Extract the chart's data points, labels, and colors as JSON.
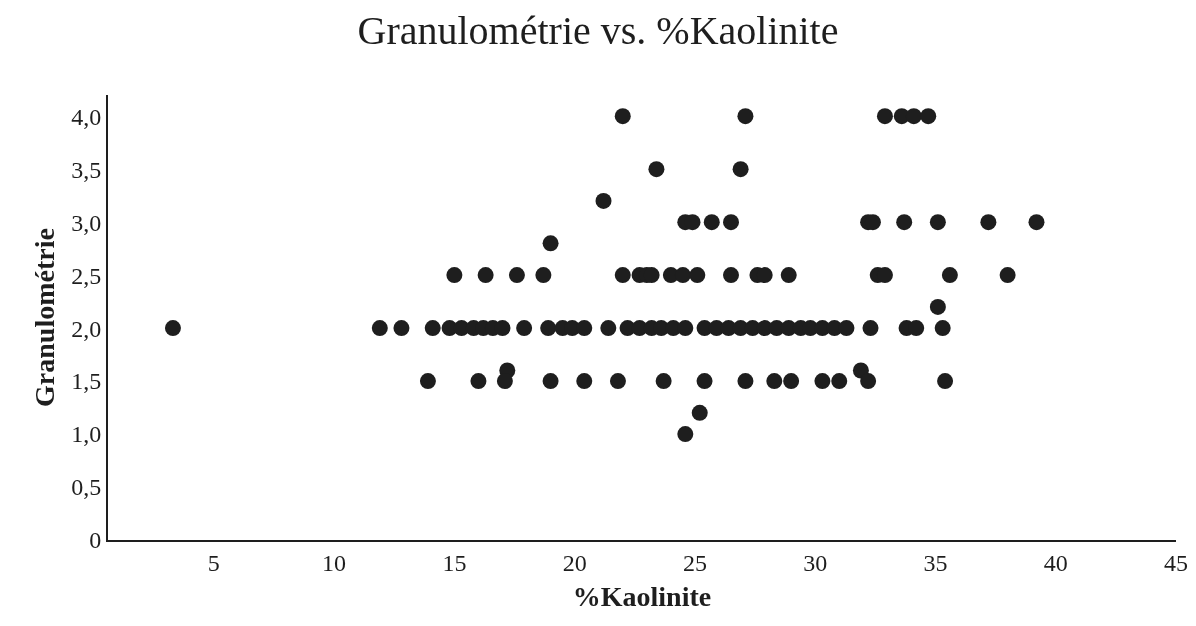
{
  "chart_data": {
    "type": "scatter",
    "title": "Granulométrie vs. %Kaolinite",
    "xlabel": "%Kaolinite",
    "ylabel": "Granulométrie",
    "marker": "circle",
    "xlim": [
      0.6,
      45
    ],
    "xticks": [
      5,
      10,
      15,
      20,
      25,
      30,
      35,
      40,
      45
    ],
    "ylim": [
      0,
      4.2
    ],
    "yticks": [
      0,
      {
        "value": 0.5,
        "label": "0,5"
      },
      {
        "value": 1,
        "label": "1,0"
      },
      {
        "value": 1.5,
        "label": "1,5"
      },
      {
        "value": 2,
        "label": "2,0"
      },
      {
        "value": 2.5,
        "label": "2,5"
      },
      {
        "value": 3,
        "label": "3,0"
      },
      {
        "value": 3.5,
        "label": "3,5"
      },
      {
        "value": 4,
        "label": "4,0"
      }
    ],
    "series": [
      {
        "color": "#1e1e1e",
        "x": [
          22.0,
          27.1,
          32.9,
          33.6,
          34.1,
          34.7,
          23.4,
          26.9,
          21.2,
          24.6,
          24.9,
          25.7,
          26.5,
          32.2,
          32.4,
          33.7,
          35.1,
          37.2,
          39.2,
          19.0,
          15.0,
          16.3,
          17.6,
          18.7,
          22.0,
          22.7,
          23.0,
          23.2,
          24.0,
          24.5,
          25.1,
          26.5,
          27.6,
          27.9,
          28.9,
          32.6,
          32.9,
          35.6,
          38.0,
          35.1,
          3.3,
          11.9,
          12.8,
          14.1,
          14.8,
          15.3,
          15.8,
          16.2,
          16.6,
          17.0,
          17.9,
          18.9,
          19.5,
          19.9,
          20.4,
          21.4,
          22.2,
          22.7,
          23.2,
          23.6,
          24.1,
          24.6,
          25.4,
          25.9,
          26.4,
          26.9,
          27.4,
          27.9,
          28.4,
          28.9,
          29.4,
          29.8,
          30.3,
          30.8,
          31.3,
          32.3,
          33.8,
          34.2,
          35.3,
          17.2,
          31.9,
          13.9,
          16.0,
          17.1,
          19.0,
          20.4,
          21.8,
          23.7,
          25.4,
          27.1,
          28.3,
          29.0,
          30.3,
          31.0,
          32.2,
          35.4,
          25.2,
          24.6
        ],
        "values": [
          4.0,
          4.0,
          4.0,
          4.0,
          4.0,
          4.0,
          3.5,
          3.5,
          3.2,
          3.0,
          3.0,
          3.0,
          3.0,
          3.0,
          3.0,
          3.0,
          3.0,
          3.0,
          3.0,
          2.8,
          2.5,
          2.5,
          2.5,
          2.5,
          2.5,
          2.5,
          2.5,
          2.5,
          2.5,
          2.5,
          2.5,
          2.5,
          2.5,
          2.5,
          2.5,
          2.5,
          2.5,
          2.5,
          2.5,
          2.2,
          2.0,
          2.0,
          2.0,
          2.0,
          2.0,
          2.0,
          2.0,
          2.0,
          2.0,
          2.0,
          2.0,
          2.0,
          2.0,
          2.0,
          2.0,
          2.0,
          2.0,
          2.0,
          2.0,
          2.0,
          2.0,
          2.0,
          2.0,
          2.0,
          2.0,
          2.0,
          2.0,
          2.0,
          2.0,
          2.0,
          2.0,
          2.0,
          2.0,
          2.0,
          2.0,
          2.0,
          2.0,
          2.0,
          2.0,
          1.6,
          1.6,
          1.5,
          1.5,
          1.5,
          1.5,
          1.5,
          1.5,
          1.5,
          1.5,
          1.5,
          1.5,
          1.5,
          1.5,
          1.5,
          1.5,
          1.5,
          1.2,
          1.0
        ]
      }
    ]
  }
}
